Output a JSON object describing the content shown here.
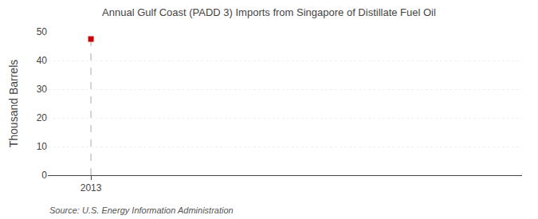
{
  "chart_data": {
    "type": "scatter",
    "title": "Annual Gulf Coast (PADD 3) Imports from Singapore of Distillate Fuel Oil",
    "ylabel": "Thousand Barrels",
    "annotations": [
      "Source: U.S. Energy Information Administration"
    ],
    "x": [
      2013
    ],
    "values": [
      47.5
    ],
    "color": "#cc0000",
    "marker": "square",
    "xlim": [
      2012.85,
      2014.5
    ],
    "xticks": [
      2013
    ],
    "ylim": [
      0,
      50
    ],
    "yticks": [
      0,
      10,
      20,
      30,
      40,
      50
    ],
    "grid": true
  }
}
